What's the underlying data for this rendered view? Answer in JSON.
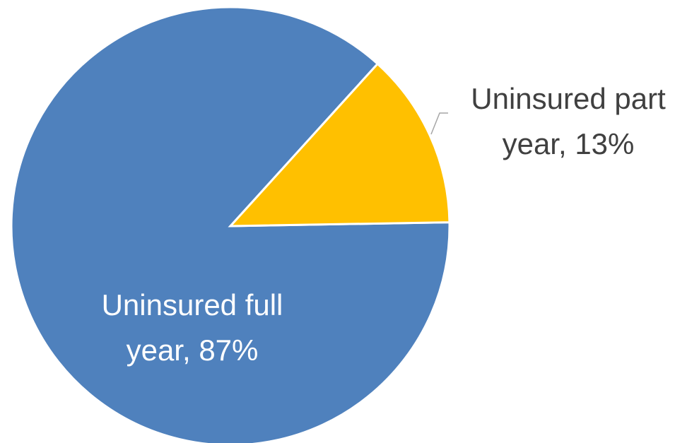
{
  "chart_data": {
    "type": "pie",
    "title": "",
    "slices": [
      {
        "label_lines": [
          "Uninsured full",
          "year, 87%"
        ],
        "value": 87,
        "color": "#4f81bd",
        "label_color": "#ffffff",
        "label_placement": "inside"
      },
      {
        "label_lines": [
          "Uninsured part",
          "year, 13%"
        ],
        "value": 13,
        "color": "#ffc000",
        "label_color": "#404040",
        "label_placement": "outside"
      }
    ],
    "legend": "none",
    "slice_border_color": "#ffffff",
    "leader_line_color": "#a6a6a6"
  }
}
